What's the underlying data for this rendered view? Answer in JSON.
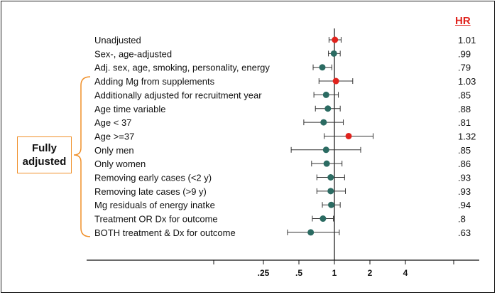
{
  "chart_data": {
    "type": "forest",
    "hr_header": "HR",
    "group_label_line1": "Fully",
    "group_label_line2": "adjusted",
    "x_scale": "log",
    "x_ticks": [
      {
        "value": 0.25,
        "label": ".25"
      },
      {
        "value": 0.5,
        "label": ".5"
      },
      {
        "value": 1,
        "label": "1"
      },
      {
        "value": 2,
        "label": "2"
      },
      {
        "value": 4,
        "label": "4"
      }
    ],
    "reference_line": 1,
    "colors": {
      "highlight": "#e0231d",
      "normal": "#2b6b62",
      "bracket": "#f0902a",
      "header": "#e0231d"
    },
    "rows": [
      {
        "label": "Unadjusted",
        "hr": 1.01,
        "hr_label": "1.01",
        "ci": [
          0.9,
          1.14
        ],
        "highlight": true
      },
      {
        "label": "Sex-, age-adjusted",
        "hr": 0.99,
        "hr_label": ".99",
        "ci": [
          0.89,
          1.12
        ],
        "highlight": false
      },
      {
        "label": "Adj. sex, age, smoking, personality, energy",
        "hr": 0.79,
        "hr_label": ".79",
        "ci": [
          0.66,
          0.95
        ],
        "highlight": false
      },
      {
        "label": "Adding Mg from supplements",
        "hr": 1.03,
        "hr_label": "1.03",
        "ci": [
          0.74,
          1.43
        ],
        "highlight": true
      },
      {
        "label": "Additionally adjusted for recruitment  year",
        "hr": 0.85,
        "hr_label": ".85",
        "ci": [
          0.67,
          1.08
        ],
        "highlight": false
      },
      {
        "label": "Age time variable",
        "hr": 0.88,
        "hr_label": ".88",
        "ci": [
          0.69,
          1.12
        ],
        "highlight": false
      },
      {
        "label": "Age < 37",
        "hr": 0.81,
        "hr_label": ".81",
        "ci": [
          0.55,
          1.19
        ],
        "highlight": false
      },
      {
        "label": "Age >=37",
        "hr": 1.32,
        "hr_label": "1.32",
        "ci": [
          0.82,
          2.13
        ],
        "highlight": true
      },
      {
        "label": "Only men",
        "hr": 0.85,
        "hr_label": ".85",
        "ci": [
          0.43,
          1.67
        ],
        "highlight": false
      },
      {
        "label": "Only women",
        "hr": 0.86,
        "hr_label": ".86",
        "ci": [
          0.64,
          1.16
        ],
        "highlight": false
      },
      {
        "label": "Removing early cases (<2 y)",
        "hr": 0.93,
        "hr_label": ".93",
        "ci": [
          0.71,
          1.22
        ],
        "highlight": false
      },
      {
        "label": "Removing late cases (>9 y)",
        "hr": 0.93,
        "hr_label": ".93",
        "ci": [
          0.71,
          1.24
        ],
        "highlight": false
      },
      {
        "label": "Mg residuals of energy inatke",
        "hr": 0.94,
        "hr_label": ".94",
        "ci": [
          0.79,
          1.12
        ],
        "highlight": false
      },
      {
        "label": "Treatment OR Dx for outcome",
        "hr": 0.8,
        "hr_label": ".8",
        "ci": [
          0.65,
          0.98
        ],
        "highlight": false
      },
      {
        "label": "BOTH treatment & Dx for outcome",
        "hr": 0.63,
        "hr_label": ".63",
        "ci": [
          0.4,
          1.1
        ],
        "highlight": false
      }
    ]
  }
}
